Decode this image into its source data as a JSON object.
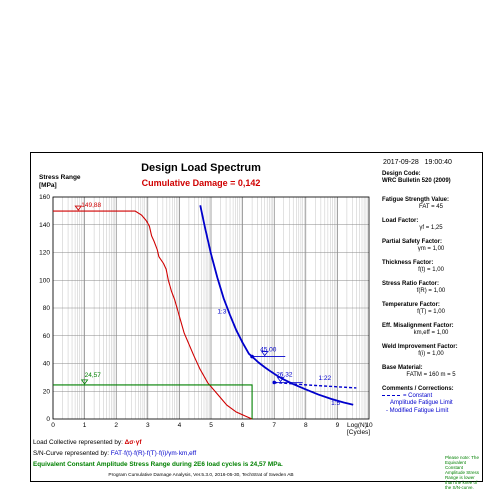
{
  "report": {
    "date": "2017-09-28",
    "time": "19:00:40",
    "title": "Design Load Spectrum",
    "subtitle": "Cumulative Damage = 0,142"
  },
  "right_panel": {
    "design_code_label": "Design Code:",
    "design_code_value": "WRC Bulletin 520 (2009)",
    "fatigue_strength_label": "Fatigue Strength Value:",
    "fatigue_strength_value": "FAT = 45",
    "load_factor_label": "Load Factor:",
    "load_factor_value": "γf = 1,25",
    "partial_safety_label": "Partial Safety Factor:",
    "partial_safety_value": "γm = 1,00",
    "thickness_label": "Thickness Factor:",
    "thickness_value": "f(t) = 1,00",
    "stress_ratio_label": "Stress Ratio Factor:",
    "stress_ratio_value": "f(R) = 1,00",
    "temperature_label": "Temperature Factor:",
    "temperature_value": "f(T) = 1,00",
    "misalignment_label": "Eff. Misalignment Factor:",
    "misalignment_value": "km,eff = 1,00",
    "weld_improvement_label": "Weld Improvement Factor:",
    "weld_improvement_value": "f(i) = 1,00",
    "base_material_label": "Base Material:",
    "base_material_value": "FATM = 160   m = 5",
    "comments_label": "Comments / Corrections:",
    "legend_constant": "= Constant",
    "legend_constant_2": "Amplitude Fatigue Limit",
    "legend_modified": "- Modified Fatigue Limit",
    "note": "Please note: The Equivalent Constant Amplitude Stress Range is lower than the knee of the S/N-curve."
  },
  "bottom": {
    "load_collective_label": "Load Collective represented by:",
    "load_collective_symbol": "Δσ·γf",
    "sn_curve_label": "S/N-Curve represented by:",
    "sn_curve_formula": "FAT·f(t)·f(R)·f(T)·f(i)/γm·km,eff",
    "equivalent_text": "Equivalent Constant Amplitude Stress Range during 2E6 load cycles is 24,57 MPa.",
    "footer": "Program Cumulative Damage Analysis,  Ver.5.3.0, 2016-05-30,   TechStrat of Sweden AB"
  },
  "colors": {
    "red": "#d00000",
    "blue": "#0000cc",
    "green": "#008000",
    "grid": "#888888"
  },
  "chart_data": {
    "type": "line",
    "ylabel": "Stress Range\n[MPa]",
    "xlabel": "Log(N)\n[Cycles]",
    "xlim": [
      0,
      10
    ],
    "ylim": [
      0,
      160
    ],
    "x_ticks": [
      0,
      1,
      2,
      3,
      4,
      5,
      6,
      7,
      8,
      9,
      10
    ],
    "y_ticks": [
      0,
      20,
      40,
      60,
      80,
      100,
      120,
      140,
      160
    ],
    "grid": "log-decades",
    "series": [
      {
        "name": "Load Collective",
        "color": "#d00000",
        "x": [
          0,
          2.6,
          2.8,
          2.95,
          3.05,
          3.12,
          3.2,
          3.3,
          3.35,
          3.5,
          3.58,
          3.65,
          3.75,
          3.85,
          3.95,
          4.05,
          4.15,
          4.3,
          4.45,
          4.65,
          4.9,
          5.2,
          5.5,
          5.8,
          6.1,
          6.3
        ],
        "y": [
          149.88,
          149.88,
          147,
          143,
          139,
          132,
          128,
          122,
          117,
          112,
          108,
          100,
          92,
          86,
          78,
          70,
          62,
          54,
          46,
          36,
          26,
          18,
          10,
          5,
          2,
          0
        ]
      },
      {
        "name": "S/N-Curve",
        "color": "#0000cc",
        "x": [
          4.66,
          4.8,
          5.0,
          5.2,
          5.4,
          5.6,
          5.8,
          6.0,
          6.2,
          6.3,
          6.5,
          6.7,
          6.9,
          7.1,
          7.3,
          7.6,
          8.0,
          8.4,
          8.8,
          9.2,
          9.5
        ],
        "y": [
          154,
          139,
          119,
          102,
          87,
          75,
          64,
          55,
          47,
          45.0,
          40.8,
          37.3,
          34.1,
          31.1,
          28.5,
          25.2,
          21.3,
          17.6,
          14.5,
          11.9,
          10.3
        ]
      },
      {
        "name": "Constant Amplitude Fatigue Limit",
        "color": "#0000cc",
        "style": "dashed",
        "x": [
          7.0,
          8.0,
          9.0,
          9.6
        ],
        "y": [
          26.32,
          24.6,
          23.2,
          22.4
        ]
      },
      {
        "name": "Equivalent Constant Amplitude Stress Range",
        "color": "#008000",
        "x": [
          0,
          6.3,
          6.3
        ],
        "y": [
          24.57,
          24.57,
          0
        ]
      }
    ],
    "annotations": [
      {
        "text": "149,88",
        "x": 0.8,
        "y": 149.88,
        "color": "#d00000"
      },
      {
        "text": "45,00",
        "x": 6.3,
        "y": 45.0,
        "color": "#0000cc"
      },
      {
        "text": "26,32",
        "x": 7.0,
        "y": 26.32,
        "color": "#0000cc"
      },
      {
        "text": "24,57",
        "x": 1.0,
        "y": 24.57,
        "color": "#008000"
      },
      {
        "text": "1:3",
        "x": 5.2,
        "y": 76,
        "color": "#0000cc"
      },
      {
        "text": "1:22",
        "x": 8.4,
        "y": 28,
        "color": "#0000cc"
      },
      {
        "text": "1:5",
        "x": 8.8,
        "y": 10,
        "color": "#0000cc"
      }
    ]
  }
}
